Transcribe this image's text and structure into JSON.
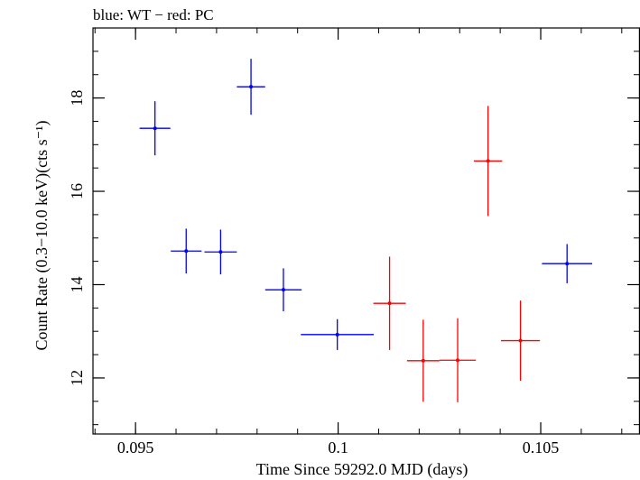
{
  "chart_data": {
    "type": "scatter",
    "title": "blue: WT − red: PC",
    "xlabel": "Time Since 59292.0 MJD (days)",
    "ylabel": "Count Rate (0.3−10.0 keV)(cts s⁻¹)",
    "xlim": [
      0.09395,
      0.10745
    ],
    "ylim": [
      10.8,
      19.5
    ],
    "x_ticks": [
      {
        "value": 0.095,
        "label": "0.095"
      },
      {
        "value": 0.1,
        "label": "0.1"
      },
      {
        "value": 0.105,
        "label": "0.105"
      }
    ],
    "y_ticks": [
      {
        "value": 12,
        "label": "12"
      },
      {
        "value": 14,
        "label": "14"
      },
      {
        "value": 16,
        "label": "16"
      },
      {
        "value": 18,
        "label": "18"
      }
    ],
    "x_minor_step": 0.001,
    "y_minor_step": 0.5,
    "grid": false,
    "legend": "none",
    "series": [
      {
        "color": "#0000ff",
        "points": [
          {
            "x": 0.09548,
            "xerr": 0.00038,
            "y": 17.35,
            "yerr": 0.58
          },
          {
            "x": 0.09625,
            "xerr": 0.00038,
            "y": 14.72,
            "yerr": 0.48
          },
          {
            "x": 0.0971,
            "xerr": 0.0004,
            "y": 14.7,
            "yerr": 0.48
          },
          {
            "x": 0.09785,
            "xerr": 0.00035,
            "y": 18.24,
            "yerr": 0.6
          },
          {
            "x": 0.09865,
            "xerr": 0.00045,
            "y": 13.89,
            "yerr": 0.46
          },
          {
            "x": 0.09998,
            "xerr": 0.0009,
            "y": 12.93,
            "yerr": 0.33
          },
          {
            "x": 0.10565,
            "xerr": 0.00062,
            "y": 14.45,
            "yerr": 0.42
          }
        ]
      },
      {
        "color": "#ff0000",
        "points": [
          {
            "x": 0.10127,
            "xerr": 0.0004,
            "y": 13.6,
            "yerr": 1.0
          },
          {
            "x": 0.1021,
            "xerr": 0.0004,
            "y": 12.37,
            "yerr": 0.88
          },
          {
            "x": 0.10295,
            "xerr": 0.00045,
            "y": 12.38,
            "yerr": 0.9
          },
          {
            "x": 0.1037,
            "xerr": 0.00035,
            "y": 16.65,
            "yerr": 1.18
          },
          {
            "x": 0.1045,
            "xerr": 0.00048,
            "y": 12.8,
            "yerr": 0.86
          }
        ]
      }
    ]
  }
}
